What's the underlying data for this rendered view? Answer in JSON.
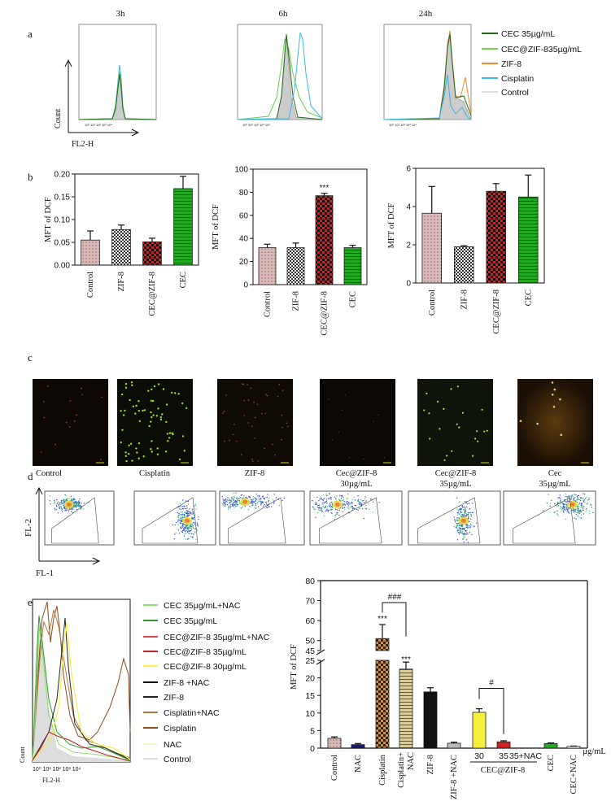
{
  "panel_labels": {
    "a": "a",
    "b": "b",
    "c": "c",
    "d": "d",
    "e": "e"
  },
  "panel_a": {
    "time_labels": [
      "3h",
      "6h",
      "24h"
    ],
    "y_label": "Count",
    "x_label": "FL2-H",
    "legend": [
      {
        "label": "CEC 35µg/mL",
        "color": "#1f6b17"
      },
      {
        "label": "CEC@ZIF-835µg/mL",
        "color": "#6ad24f"
      },
      {
        "label": "ZIF-8",
        "color": "#f28a2e"
      },
      {
        "label": "Cisplatin",
        "color": "#3bb6e6"
      },
      {
        "label": "Control",
        "color": "#dddddd"
      }
    ]
  },
  "chart_data": [
    {
      "type": "bar",
      "title": "",
      "ylabel": "MFT of DCF",
      "xlabel": "",
      "categories": [
        "Control",
        "ZIF-8",
        "CEC@ZIF-8",
        "CEC"
      ],
      "values": [
        0.055,
        0.078,
        0.051,
        0.168
      ],
      "errors": [
        0.02,
        0.01,
        0.008,
        0.027
      ],
      "ylim": [
        0,
        0.2
      ],
      "ticks": [
        "0.00",
        "0.05",
        "0.10",
        "0.15",
        "0.20"
      ]
    },
    {
      "type": "bar",
      "title": "",
      "ylabel": "MFT of DCF",
      "xlabel": "",
      "categories": [
        "Control",
        "ZIF-8",
        "CEC@ZIF-8",
        "CEC"
      ],
      "values": [
        32,
        32,
        77,
        32
      ],
      "errors": [
        3,
        4,
        2,
        2
      ],
      "ylim": [
        0,
        100
      ],
      "ticks": [
        "0",
        "20",
        "40",
        "60",
        "80",
        "100"
      ],
      "annotation": "***"
    },
    {
      "type": "bar",
      "title": "",
      "ylabel": "MFT of DCF",
      "xlabel": "",
      "categories": [
        "Control",
        "ZIF-8",
        "CEC@ZIF-8",
        "CEC"
      ],
      "values": [
        3.65,
        1.9,
        4.8,
        4.5
      ],
      "errors": [
        1.4,
        0.05,
        0.4,
        1.15
      ],
      "ylim": [
        0,
        6
      ],
      "ticks": [
        "0",
        "2",
        "4",
        "6"
      ]
    },
    {
      "type": "bar",
      "title": "",
      "ylabel": "MFT of DCF",
      "xlabel": "µg/mL",
      "categories": [
        "Control",
        "NAC",
        "Cisplatin",
        "Cisplatin+\nNAC",
        "ZIF-8",
        "ZIF-8 +NAC",
        "30",
        "35",
        "35+NAC",
        "CEC",
        "CEC+NAC"
      ],
      "values": [
        2.8,
        1.0,
        51,
        22.5,
        16,
        1.4,
        10.2,
        1.8,
        0,
        1.3,
        0.5
      ],
      "errors": [
        0.4,
        0.3,
        7,
        2,
        1.2,
        0.3,
        1,
        0.3,
        0,
        0.2,
        0.1
      ],
      "ticks_low": [
        "0",
        "5",
        "10",
        "15",
        "20",
        "25"
      ],
      "ticks_high": [
        "45",
        "50",
        "60",
        "70",
        "80"
      ],
      "annotations": [
        "***",
        "***",
        "###",
        "#"
      ],
      "group_label": "CEC@ZIF-8"
    }
  ],
  "panel_c": {
    "captions": [
      "Control",
      "Cisplatin",
      "ZIF-8",
      "Cec@ZIF-8",
      "Cec@ZIF-8",
      "Cec"
    ],
    "subcaptions": [
      "",
      "",
      "",
      "30µg/mL",
      "35µg/mL",
      "35µg/mL"
    ]
  },
  "panel_d": {
    "y_label": "FL-2",
    "x_label": "FL-1"
  },
  "panel_e": {
    "y_label": "Count",
    "x_label": "FL2-H",
    "legend": [
      {
        "label": "CEC 35µg/mL+NAC",
        "color": "#8fe06a"
      },
      {
        "label": "CEC 35µg/mL",
        "color": "#2a9b2a"
      },
      {
        "label": "CEC@ZIF-8  35µg/mL+NAC",
        "color": "#e04040"
      },
      {
        "label": "CEC@ZIF-8 35µg/mL",
        "color": "#c02020"
      },
      {
        "label": "CEC@ZIF-8  30µg/mL",
        "color": "#f5f04a"
      },
      {
        "label": "ZIF-8 +NAC",
        "color": "#000000"
      },
      {
        "label": "ZIF-8",
        "color": "#222222"
      },
      {
        "label": "Cisplatin+NAC",
        "color": "#b07a3a"
      },
      {
        "label": "Cisplatin",
        "color": "#8a4a1a"
      },
      {
        "label": "NAC",
        "color": "#f5f7d8"
      },
      {
        "label": "Control",
        "color": "#dddddd"
      }
    ]
  }
}
